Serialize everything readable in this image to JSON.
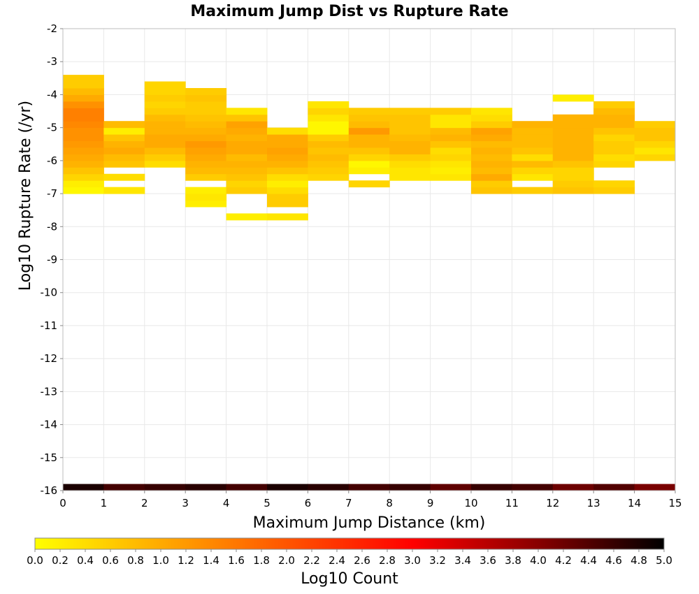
{
  "chart_data": {
    "type": "heatmap",
    "title": "Maximum Jump Dist vs Rupture Rate",
    "xlabel": "Maximum Jump Distance (km)",
    "ylabel": "Log10 Rupture Rate (/yr)",
    "xlim": [
      0,
      15
    ],
    "ylim": [
      -16,
      -2
    ],
    "x_ticks": [
      "0",
      "1",
      "2",
      "3",
      "4",
      "5",
      "6",
      "7",
      "8",
      "9",
      "10",
      "11",
      "12",
      "13",
      "14",
      "15"
    ],
    "y_ticks": [
      "-16",
      "-15",
      "-14",
      "-13",
      "-12",
      "-11",
      "-10",
      "-9",
      "-8",
      "-7",
      "-6",
      "-5",
      "-4",
      "-3",
      "-2"
    ],
    "x_bin_width": 1,
    "y_bin_height": 0.2,
    "grid": true,
    "colorbar": {
      "label": "Log10 Count",
      "range": [
        0,
        5
      ],
      "ticks": [
        "0.0",
        "0.2",
        "0.4",
        "0.6",
        "0.8",
        "1.0",
        "1.2",
        "1.4",
        "1.6",
        "1.8",
        "2.0",
        "2.2",
        "2.4",
        "2.6",
        "2.8",
        "3.0",
        "3.2",
        "3.4",
        "3.6",
        "3.8",
        "4.0",
        "4.2",
        "4.4",
        "4.6",
        "4.8",
        "5.0"
      ],
      "colors": [
        "#ffff00",
        "#ffaa00",
        "#ff5500",
        "#ff0000",
        "#880000",
        "#000000"
      ]
    },
    "columns": [
      {
        "x0": 0,
        "y_start": -7.0,
        "values": [
          0.1,
          0.2,
          0.5,
          0.7,
          0.9,
          1.0,
          1.1,
          1.2,
          1.3,
          1.3,
          1.4,
          1.5,
          1.5,
          1.3,
          1.0,
          0.8,
          0.6,
          0.6
        ]
      },
      {
        "x0": 1,
        "y_start": -7.0,
        "values": [
          0.3,
          null,
          0.4,
          null,
          0.7,
          0.8,
          1.0,
          0.9,
          0.7,
          0.2,
          0.8
        ]
      },
      {
        "x0": 2,
        "y_start": -6.2,
        "values": [
          0.4,
          0.6,
          0.8,
          1.0,
          1.0,
          0.9,
          0.9,
          0.8,
          0.6,
          0.5,
          0.6,
          0.5,
          0.5
        ]
      },
      {
        "x0": 3,
        "y_start": -7.4,
        "values": [
          0.2,
          0.3,
          0.2,
          null,
          0.6,
          0.8,
          0.9,
          1.0,
          1.1,
          1.2,
          1.0,
          0.9,
          0.8,
          0.7,
          0.6,
          0.6,
          0.7,
          0.6
        ]
      },
      {
        "x0": 4,
        "y_start": -7.8,
        "values": [
          0.2,
          null,
          null,
          null,
          0.6,
          0.5,
          0.7,
          0.8,
          0.9,
          0.8,
          1.0,
          1.0,
          0.9,
          1.0,
          1.1,
          0.7,
          0.3
        ]
      },
      {
        "x0": 5,
        "y_start": -7.8,
        "values": [
          0.3,
          null,
          0.6,
          0.6,
          0.4,
          0.2,
          0.4,
          0.7,
          0.9,
          1.0,
          1.1,
          1.0,
          1.0,
          0.4
        ]
      },
      {
        "x0": 6,
        "y_start": -6.6,
        "values": [
          0.5,
          0.6,
          0.7,
          0.8,
          0.7,
          0.8,
          0.6,
          0.1,
          0.1,
          0.3,
          0.5,
          0.3
        ]
      },
      {
        "x0": 7,
        "y_start": -6.8,
        "values": [
          0.5,
          null,
          0.2,
          0.1,
          0.5,
          0.7,
          0.9,
          0.9,
          1.2,
          0.8,
          0.7,
          0.6
        ]
      },
      {
        "x0": 8,
        "y_start": -6.6,
        "values": [
          0.3,
          0.3,
          0.4,
          0.6,
          0.9,
          0.9,
          0.8,
          0.7,
          0.7,
          0.7,
          0.6
        ]
      },
      {
        "x0": 9,
        "y_start": -6.6,
        "values": [
          0.3,
          0.2,
          0.3,
          0.5,
          0.4,
          0.7,
          0.9,
          0.8,
          0.3,
          0.3,
          0.6
        ]
      },
      {
        "x0": 10,
        "y_start": -7.0,
        "values": [
          0.7,
          0.6,
          1.0,
          0.8,
          0.9,
          0.8,
          0.9,
          0.8,
          1.0,
          1.1,
          0.6,
          0.4,
          0.3
        ]
      },
      {
        "x0": 11,
        "y_start": -7.0,
        "values": [
          0.6,
          null,
          0.3,
          0.5,
          0.8,
          0.4,
          0.7,
          0.8,
          0.8,
          0.8,
          0.9
        ]
      },
      {
        "x0": 12,
        "y_start": -7.0,
        "values": [
          0.7,
          0.6,
          0.5,
          0.5,
          0.7,
          0.9,
          0.9,
          0.9,
          0.9,
          0.9,
          0.9,
          0.9,
          null,
          null,
          0.2
        ]
      },
      {
        "x0": 13,
        "y_start": -7.0,
        "values": [
          0.6,
          0.5,
          null,
          null,
          0.5,
          0.4,
          0.6,
          0.6,
          0.5,
          0.7,
          0.9,
          0.9,
          0.8,
          0.6
        ]
      },
      {
        "x0": 14,
        "y_start": -6.0,
        "values": [
          0.5,
          0.3,
          0.5,
          0.7,
          0.7,
          0.6
        ]
      }
    ],
    "noise_row": {
      "y0": -16.0,
      "values": [
        4.8,
        4.5,
        4.6,
        4.7,
        4.5,
        4.8,
        4.7,
        4.5,
        4.6,
        4.3,
        4.6,
        4.5,
        4.2,
        4.4,
        4.1
      ]
    }
  }
}
